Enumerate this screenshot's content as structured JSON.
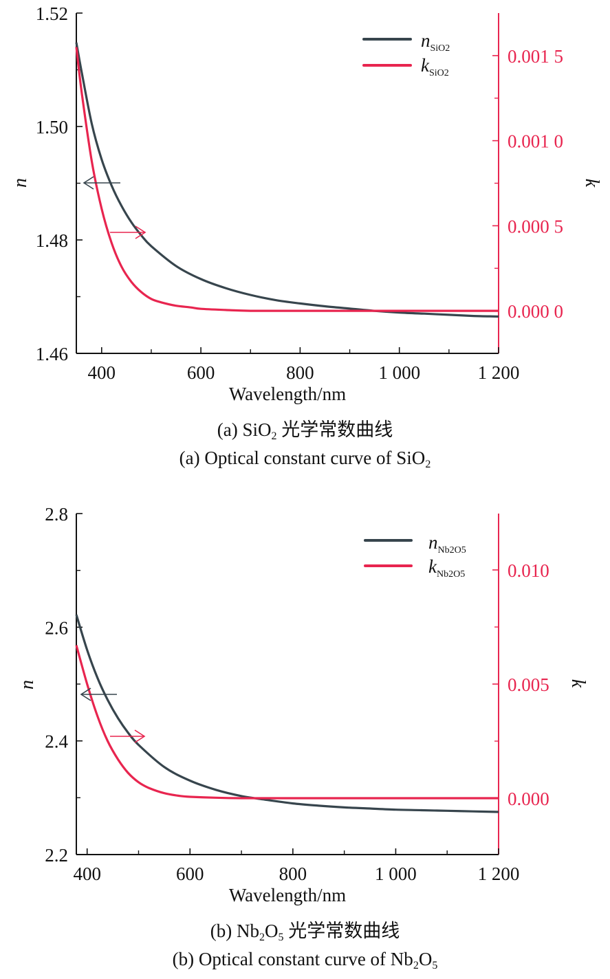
{
  "colors": {
    "n_series": "#37454d",
    "k_series": "#e8254f",
    "axis": "#111111"
  },
  "chart_data": [
    {
      "type": "line",
      "id": "a",
      "xlabel": "Wavelength/nm",
      "ylabel_left": "n",
      "ylabel_right": "k",
      "xlim": [
        349,
        1200
      ],
      "ylim_left": [
        1.46,
        1.52
      ],
      "ylim_right": [
        -0.00025,
        0.00175
      ],
      "x_ticks": [
        {
          "value": 400,
          "label": "400"
        },
        {
          "value": 600,
          "label": "600"
        },
        {
          "value": 800,
          "label": "800"
        },
        {
          "value": 1000,
          "label": "1 000"
        },
        {
          "value": 1200,
          "label": "1 200"
        }
      ],
      "x_minor_ticks": [
        500,
        700,
        900,
        1100
      ],
      "y_left_ticks": [
        {
          "value": 1.46,
          "label": "1.46"
        },
        {
          "value": 1.48,
          "label": "1.48"
        },
        {
          "value": 1.5,
          "label": "1.50"
        },
        {
          "value": 1.52,
          "label": "1.52"
        }
      ],
      "y_left_minor_ticks": [
        1.47,
        1.49,
        1.51
      ],
      "y_right_ticks": [
        {
          "value": 0.0,
          "label": "0.000 0"
        },
        {
          "value": 0.0005,
          "label": "0.000 5"
        },
        {
          "value": 0.001,
          "label": "0.001 0"
        },
        {
          "value": 0.0015,
          "label": "0.001 5"
        }
      ],
      "y_right_minor_ticks": [
        0.00025,
        0.00075,
        0.00125
      ],
      "legend_position": "top-right",
      "series": [
        {
          "name": "n",
          "subscript": "SiO2",
          "axis": "left",
          "x": [
            349,
            360,
            380,
            400,
            420,
            440,
            460,
            480,
            500,
            550,
            600,
            650,
            700,
            750,
            800,
            850,
            900,
            950,
            1000,
            1050,
            1100,
            1150,
            1200
          ],
          "y": [
            1.5148,
            1.5095,
            1.5005,
            1.4942,
            1.4896,
            1.486,
            1.4831,
            1.4808,
            1.4789,
            1.4754,
            1.4731,
            1.4715,
            1.4703,
            1.4694,
            1.4688,
            1.4683,
            1.4679,
            1.4675,
            1.4672,
            1.467,
            1.4668,
            1.4666,
            1.4665
          ]
        },
        {
          "name": "k",
          "subscript": "SiO2",
          "axis": "right",
          "x": [
            349,
            360,
            380,
            400,
            420,
            440,
            460,
            480,
            500,
            520,
            550,
            580,
            600,
            650,
            700,
            800,
            900,
            1000,
            1100,
            1200
          ],
          "y": [
            0.00155,
            0.00128,
            0.00088,
            0.0006,
            0.0004,
            0.00026,
            0.00017,
            0.00011,
            7e-05,
            5e-05,
            3e-05,
            2e-05,
            1.2e-05,
            5e-06,
            0.0,
            0.0,
            0.0,
            0.0,
            0.0,
            0.0
          ]
        }
      ],
      "annotations": [
        {
          "type": "arrow",
          "direction": "left",
          "points_to": "left-axis",
          "series": "n"
        },
        {
          "type": "arrow",
          "direction": "right",
          "points_to": "right-axis",
          "series": "k"
        }
      ],
      "caption_cn": {
        "pre": "(a) SiO",
        "sub": "2",
        "post": " 光学常数曲线"
      },
      "caption_en": {
        "pre": "(a) Optical constant curve of SiO",
        "sub": "2",
        "post": ""
      }
    },
    {
      "type": "line",
      "id": "b",
      "xlabel": "Wavelength/nm",
      "ylabel_left": "n",
      "ylabel_right": "k",
      "xlim": [
        379,
        1200
      ],
      "ylim_left": [
        2.2,
        2.8
      ],
      "ylim_right": [
        -0.00247,
        0.01247
      ],
      "x_ticks": [
        {
          "value": 400,
          "label": "400"
        },
        {
          "value": 600,
          "label": "600"
        },
        {
          "value": 800,
          "label": "800"
        },
        {
          "value": 1000,
          "label": "1 000"
        },
        {
          "value": 1200,
          "label": "1 200"
        }
      ],
      "x_minor_ticks": [
        500,
        700,
        900,
        1100
      ],
      "y_left_ticks": [
        {
          "value": 2.2,
          "label": "2.2"
        },
        {
          "value": 2.4,
          "label": "2.4"
        },
        {
          "value": 2.6,
          "label": "2.6"
        },
        {
          "value": 2.8,
          "label": "2.8"
        }
      ],
      "y_left_minor_ticks": [
        2.3,
        2.5,
        2.7
      ],
      "y_right_ticks": [
        {
          "value": 0.0,
          "label": "0.000"
        },
        {
          "value": 0.005,
          "label": "0.005"
        },
        {
          "value": 0.01,
          "label": "0.010"
        }
      ],
      "y_right_minor_ticks": [
        0.0025,
        0.0075
      ],
      "legend_position": "top-right",
      "series": [
        {
          "name": "n",
          "subscript": "Nb2O5",
          "axis": "left",
          "x": [
            379,
            400,
            420,
            440,
            460,
            480,
            500,
            550,
            600,
            650,
            700,
            750,
            800,
            850,
            900,
            950,
            1000,
            1050,
            1100,
            1150,
            1200
          ],
          "y": [
            2.622,
            2.56,
            2.511,
            2.472,
            2.44,
            2.414,
            2.393,
            2.354,
            2.33,
            2.314,
            2.303,
            2.296,
            2.29,
            2.286,
            2.283,
            2.281,
            2.279,
            2.278,
            2.277,
            2.276,
            2.275
          ]
        },
        {
          "name": "k",
          "subscript": "Nb2O5",
          "axis": "right",
          "x": [
            379,
            400,
            420,
            440,
            460,
            480,
            500,
            520,
            550,
            580,
            600,
            650,
            700,
            800,
            900,
            1000,
            1100,
            1200
          ],
          "y": [
            0.0067,
            0.005,
            0.0036,
            0.0025,
            0.0017,
            0.0011,
            0.0007,
            0.00045,
            0.00022,
            0.0001,
            6e-05,
            2e-05,
            0.0,
            0.0,
            0.0,
            0.0,
            0.0,
            0.0
          ]
        }
      ],
      "annotations": [
        {
          "type": "arrow",
          "direction": "left",
          "points_to": "left-axis",
          "series": "n"
        },
        {
          "type": "arrow",
          "direction": "right",
          "points_to": "right-axis",
          "series": "k"
        }
      ],
      "caption_cn": {
        "pre": "(b) Nb",
        "sub": "2",
        "mid": "O",
        "sub2": "5",
        "post": " 光学常数曲线"
      },
      "caption_en": {
        "pre": "(b) Optical constant curve of Nb",
        "sub": "2",
        "mid": "O",
        "sub2": "5",
        "post": ""
      }
    }
  ]
}
